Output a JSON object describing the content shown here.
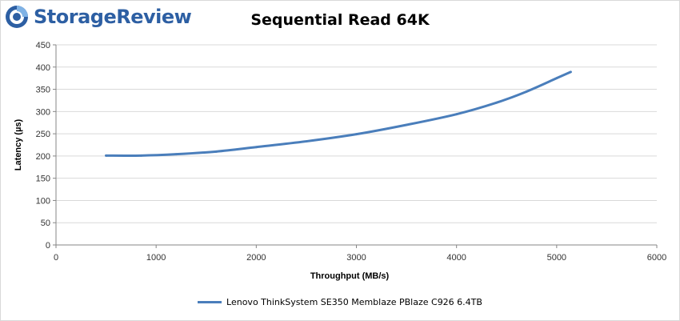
{
  "brand": {
    "name": "StorageReview",
    "icon": "storagereview-logo-icon",
    "color": "#2d5fa3"
  },
  "chart_data": {
    "type": "line",
    "title": "Sequential Read 64K",
    "xlabel": "Throughput (MB/s)",
    "ylabel": "Latency (µs)",
    "xlim": [
      0,
      6000
    ],
    "ylim": [
      0,
      450
    ],
    "xticks": [
      "0",
      "1000",
      "2000",
      "3000",
      "4000",
      "5000",
      "6000"
    ],
    "yticks": [
      "0",
      "50",
      "100",
      "150",
      "200",
      "250",
      "300",
      "350",
      "400",
      "450"
    ],
    "grid": "horizontal",
    "legend_position": "bottom",
    "series": [
      {
        "name": "Lenovo ThinkSystem SE350 Memblaze PBlaze C926 6.4TB",
        "color": "#4a7ebb",
        "x": [
          500,
          850,
          1200,
          1600,
          2000,
          2500,
          3000,
          3500,
          4000,
          4400,
          4700,
          5000,
          5140
        ],
        "y": [
          201,
          201,
          204,
          210,
          220,
          233,
          249,
          270,
          294,
          320,
          345,
          375,
          389
        ]
      }
    ]
  }
}
